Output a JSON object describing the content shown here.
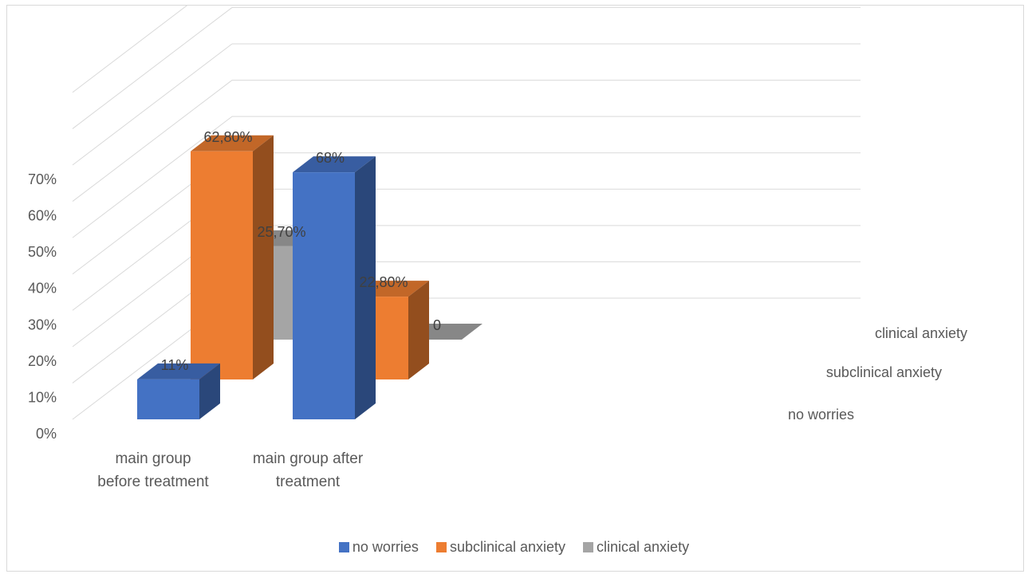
{
  "chart_data": {
    "type": "bar",
    "categories": [
      "main group before treatment",
      "main group after treatment"
    ],
    "category_lines": [
      [
        "main group",
        "before treatment"
      ],
      [
        "main group after",
        "treatment"
      ]
    ],
    "series": [
      {
        "name": "no worries",
        "color": "#4472c4",
        "values": [
          11,
          68
        ],
        "labels": [
          "11%",
          "68%"
        ]
      },
      {
        "name": "subclinical anxiety",
        "color": "#ed7d31",
        "values": [
          62.8,
          22.8
        ],
        "labels": [
          "62,80%",
          "22,80%"
        ]
      },
      {
        "name": "clinical anxiety",
        "color": "#a5a5a5",
        "values": [
          25.7,
          0
        ],
        "labels": [
          "25,70%",
          "0"
        ]
      }
    ],
    "y_ticks": [
      "0%",
      "10%",
      "20%",
      "30%",
      "40%",
      "50%",
      "60%",
      "70%"
    ],
    "ylim": [
      0,
      70
    ],
    "depth_axis_labels": [
      "clinical anxiety",
      "subclinical anxiety",
      "no worries"
    ],
    "legend_position": "bottom",
    "grid": true
  }
}
